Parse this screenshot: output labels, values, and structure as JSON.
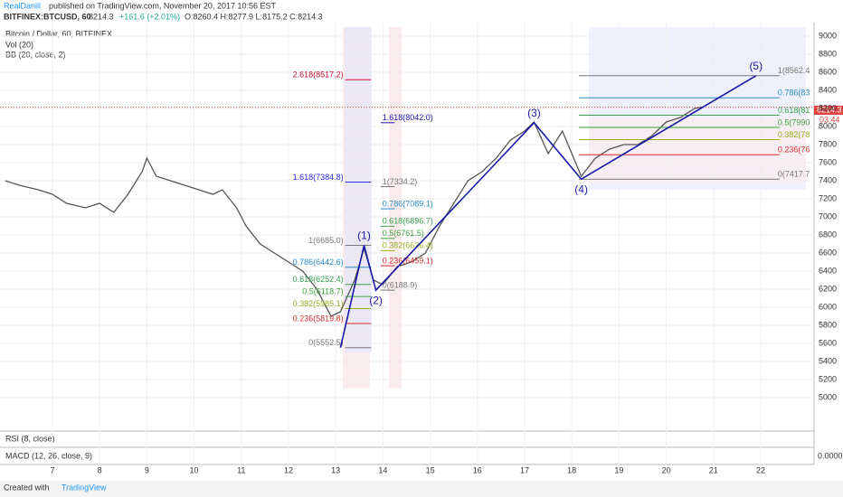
{
  "header": {
    "author": "RealDaniil",
    "published": "published on TradingView.com, November 20, 2017 10:56 EST",
    "symbol": "BITFINEX:BTCUSD, 60",
    "last": "8214.3",
    "change": "+161.6 (+2.01%)",
    "ohlc": "O:8260.4 H:8277.9 L:8175.2 C:8214.3"
  },
  "legend": {
    "title": "Bitcoin / Dollar, 60, BITFINEX",
    "vol": "Vol (20)",
    "bb": "BB (20, close, 2)",
    "rsi": "RSI (8, close)",
    "macd": "MACD (12, 26, close, 9)"
  },
  "price_tag": {
    "value": "8214.3",
    "timer": "03:44"
  },
  "macd_zero": "0.0000",
  "footer": {
    "created": "Created with",
    "brand": "TradingView"
  },
  "chart_data": {
    "type": "line",
    "color": "#555555",
    "x": [
      6.0,
      6.3,
      6.7,
      7.0,
      7.3,
      7.7,
      8.0,
      8.3,
      8.6,
      8.9,
      9.0,
      9.2,
      9.5,
      9.8,
      10.1,
      10.4,
      10.6,
      10.9,
      11.1,
      11.4,
      11.7,
      12.0,
      12.3,
      12.6,
      12.9,
      13.1,
      13.4,
      13.6,
      13.8,
      14.0,
      14.3,
      14.6,
      14.9,
      15.2,
      15.5,
      15.8,
      16.1,
      16.4,
      16.7,
      17.0,
      17.2,
      17.5,
      17.8,
      18.0,
      18.2,
      18.5,
      18.8,
      19.1,
      19.4,
      19.7,
      20.0,
      20.3,
      20.6,
      20.75
    ],
    "values": [
      7400,
      7350,
      7300,
      7250,
      7150,
      7100,
      7150,
      7050,
      7250,
      7500,
      7650,
      7450,
      7400,
      7350,
      7300,
      7250,
      7300,
      7100,
      6900,
      6700,
      6600,
      6500,
      6400,
      6200,
      5900,
      5950,
      6300,
      6650,
      6300,
      6250,
      6450,
      6500,
      6600,
      6900,
      7150,
      7400,
      7500,
      7650,
      7850,
      7950,
      8050,
      7700,
      7950,
      7700,
      7450,
      7650,
      7750,
      7800,
      7800,
      7900,
      8050,
      8100,
      8200,
      8214
    ],
    "xlim": [
      5.89,
      23.13
    ],
    "xticks": [
      7,
      8,
      9,
      10,
      11,
      12,
      13,
      14,
      15,
      16,
      17,
      18,
      19,
      20,
      21,
      22
    ],
    "ylim": [
      4800,
      9150
    ],
    "yticks": [
      5000,
      5200,
      5400,
      5600,
      5800,
      6000,
      6200,
      6400,
      6600,
      6800,
      7000,
      7200,
      7400,
      7600,
      7800,
      8000,
      8200,
      8400,
      8600,
      8800,
      9000
    ],
    "grid": true,
    "waves": {
      "labels": [
        null,
        "(1)",
        "(2)",
        "(3)",
        "(4)",
        "(5)"
      ],
      "x": [
        13.1,
        13.6,
        13.85,
        17.2,
        18.2,
        21.9
      ],
      "y": [
        5552.5,
        6685,
        6188.9,
        8042,
        7417.7,
        8562.4
      ],
      "color": "#1a1aa8"
    },
    "fib_sets": [
      {
        "x": [
          13.2,
          13.75
        ],
        "levels": [
          {
            "label": "2.618(8517.2)",
            "value": 8517.2,
            "color": "#c8102e"
          },
          {
            "label": "1.618(7384.8)",
            "value": 7384.8,
            "color": "#2a2ae0"
          },
          {
            "label": "1(6685.0)",
            "value": 6685.0,
            "color": "#777777"
          },
          {
            "label": "0.786(6442.6)",
            "value": 6442.6,
            "color": "#2a8cc8"
          },
          {
            "label": "0.618(6252.4)",
            "value": 6252.4,
            "color": "#3aa050"
          },
          {
            "label": "0.5(6118.7)",
            "value": 6118.7,
            "color": "#40a040"
          },
          {
            "label": "0.382(5985.1)",
            "value": 5985.1,
            "color": "#98b020"
          },
          {
            "label": "0.236(5819.8)",
            "value": 5819.8,
            "color": "#d03030"
          },
          {
            "label": "0(5552.5)",
            "value": 5552.5,
            "color": "#777777"
          }
        ]
      },
      {
        "x": [
          13.95,
          14.25
        ],
        "levels": [
          {
            "label": "1.618(8042.0)",
            "value": 8042.0,
            "color": "#1a1aa8"
          },
          {
            "label": "1(7334.2)",
            "value": 7334.2,
            "color": "#777777"
          },
          {
            "label": "0.786(7089.1)",
            "value": 7089.1,
            "color": "#2a8cc8"
          },
          {
            "label": "0.618(6896.7)",
            "value": 6896.7,
            "color": "#3aa050"
          },
          {
            "label": "0.5(6761.5)",
            "value": 6761.5,
            "color": "#40a040"
          },
          {
            "label": "0.382(6626.4)",
            "value": 6626.4,
            "color": "#98b020"
          },
          {
            "label": "0.236(6459.1)",
            "value": 6459.1,
            "color": "#d03030"
          },
          {
            "label": "0(6188.9)",
            "value": 6188.9,
            "color": "#777777"
          }
        ]
      },
      {
        "x": [
          18.15,
          22.4
        ],
        "levels": [
          {
            "label": "1(8562.4",
            "value": 8562.4,
            "color": "#777777"
          },
          {
            "label": "0.786(83",
            "value": 8317.4,
            "color": "#2a8cc8"
          },
          {
            "label": "0.618(81",
            "value": 8125.1,
            "color": "#3aa050"
          },
          {
            "label": "0.5(7990",
            "value": 7990.1,
            "color": "#40a040"
          },
          {
            "label": "0.382(78",
            "value": 7855.0,
            "color": "#98b020"
          },
          {
            "label": "0.236(76",
            "value": 7687.9,
            "color": "#d03030"
          },
          {
            "label": "0(7417.7",
            "value": 7417.7,
            "color": "#777777"
          }
        ]
      }
    ]
  }
}
